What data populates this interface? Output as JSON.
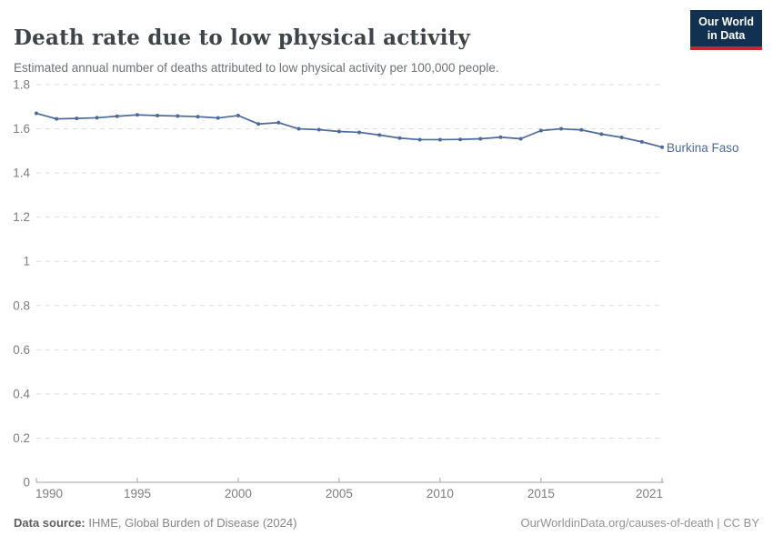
{
  "header": {
    "title": "Death rate due to low physical activity",
    "subtitle": "Estimated annual number of deaths attributed to low physical activity per 100,000 people."
  },
  "logo": {
    "line1": "Our World",
    "line2": "in Data"
  },
  "entity_label": "Burkina Faso",
  "footer": {
    "source_label": "Data source:",
    "source_text": " IHME, Global Burden of Disease (2024)",
    "link_text": "OurWorldinData.org/causes-of-death | CC BY"
  },
  "colors": {
    "line": "#4c6a9c",
    "grid": "#dedede",
    "axis": "#a3a3a3",
    "tick_label": "#7d7d7d",
    "logo_bg": "#12304f",
    "logo_stripe": "#c2282e"
  },
  "chart_data": {
    "type": "line",
    "title": "Death rate due to low physical activity",
    "subtitle": "Estimated annual number of deaths attributed to low physical activity per 100,000 people.",
    "xlabel": "",
    "ylabel": "",
    "grid": true,
    "legend_position": "right-end-label",
    "x": [
      1990,
      1991,
      1992,
      1993,
      1994,
      1995,
      1996,
      1997,
      1998,
      1999,
      2000,
      2001,
      2002,
      2003,
      2004,
      2005,
      2006,
      2007,
      2008,
      2009,
      2010,
      2011,
      2012,
      2013,
      2014,
      2015,
      2016,
      2017,
      2018,
      2019,
      2020,
      2021
    ],
    "series": [
      {
        "name": "Burkina Faso",
        "color": "#4c6a9c",
        "values": [
          1.67,
          1.645,
          1.647,
          1.65,
          1.657,
          1.663,
          1.66,
          1.658,
          1.655,
          1.649,
          1.66,
          1.622,
          1.628,
          1.6,
          1.596,
          1.588,
          1.584,
          1.572,
          1.558,
          1.551,
          1.551,
          1.552,
          1.555,
          1.562,
          1.555,
          1.592,
          1.6,
          1.595,
          1.576,
          1.561,
          1.541,
          1.517
        ]
      }
    ],
    "ylim": [
      0,
      1.8
    ],
    "yticks": [
      0,
      0.2,
      0.4,
      0.6,
      0.8,
      1,
      1.2,
      1.4,
      1.6,
      1.8
    ],
    "ytick_labels": [
      "0",
      "0.2",
      "0.4",
      "0.6",
      "0.8",
      "1",
      "1.2",
      "1.4",
      "1.6",
      "1.8"
    ],
    "xticks": [
      1990,
      1995,
      2000,
      2005,
      2010,
      2015,
      2021
    ],
    "xtick_labels": [
      "1990",
      "1995",
      "2000",
      "2005",
      "2010",
      "2015",
      "2021"
    ]
  }
}
